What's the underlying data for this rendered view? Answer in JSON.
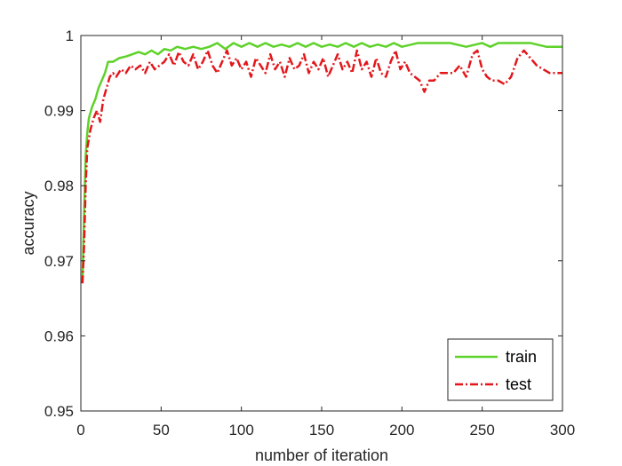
{
  "chart_data": {
    "type": "line",
    "xlabel": "number of iteration",
    "ylabel": "accuracy",
    "xlim": [
      0,
      300
    ],
    "ylim": [
      0.95,
      1.0
    ],
    "x_ticks": [
      0,
      50,
      100,
      150,
      200,
      250,
      300
    ],
    "x_tick_labels": [
      "0",
      "50",
      "100",
      "150",
      "200",
      "250",
      "300"
    ],
    "y_ticks": [
      0.95,
      0.96,
      0.97,
      0.98,
      0.99,
      1.0
    ],
    "y_tick_labels": [
      "0.95",
      "0.96",
      "0.97",
      "0.98",
      "0.99",
      "1"
    ],
    "grid": false,
    "legend_position": "bottom-right",
    "series": [
      {
        "name": "train",
        "color": "#5ed22a",
        "line_style": "solid",
        "points": [
          [
            1,
            0.967
          ],
          [
            2,
            0.976
          ],
          [
            3,
            0.984
          ],
          [
            4,
            0.987
          ],
          [
            5,
            0.989
          ],
          [
            7,
            0.9905
          ],
          [
            9,
            0.9915
          ],
          [
            11,
            0.993
          ],
          [
            13,
            0.994
          ],
          [
            15,
            0.995
          ],
          [
            17,
            0.9965
          ],
          [
            20,
            0.9965
          ],
          [
            24,
            0.997
          ],
          [
            28,
            0.9972
          ],
          [
            32,
            0.9975
          ],
          [
            36,
            0.9978
          ],
          [
            40,
            0.9975
          ],
          [
            44,
            0.998
          ],
          [
            48,
            0.9975
          ],
          [
            52,
            0.9982
          ],
          [
            56,
            0.998
          ],
          [
            60,
            0.9985
          ],
          [
            65,
            0.9982
          ],
          [
            70,
            0.9985
          ],
          [
            75,
            0.9982
          ],
          [
            80,
            0.9985
          ],
          [
            85,
            0.999
          ],
          [
            90,
            0.9982
          ],
          [
            95,
            0.999
          ],
          [
            100,
            0.9985
          ],
          [
            105,
            0.999
          ],
          [
            110,
            0.9985
          ],
          [
            115,
            0.999
          ],
          [
            120,
            0.9985
          ],
          [
            125,
            0.9988
          ],
          [
            130,
            0.9985
          ],
          [
            135,
            0.999
          ],
          [
            140,
            0.9985
          ],
          [
            145,
            0.999
          ],
          [
            150,
            0.9985
          ],
          [
            155,
            0.9988
          ],
          [
            160,
            0.9985
          ],
          [
            165,
            0.999
          ],
          [
            170,
            0.9985
          ],
          [
            175,
            0.999
          ],
          [
            180,
            0.9985
          ],
          [
            185,
            0.9988
          ],
          [
            190,
            0.9985
          ],
          [
            195,
            0.999
          ],
          [
            200,
            0.9985
          ],
          [
            210,
            0.999
          ],
          [
            220,
            0.999
          ],
          [
            230,
            0.999
          ],
          [
            240,
            0.9985
          ],
          [
            250,
            0.999
          ],
          [
            255,
            0.9985
          ],
          [
            260,
            0.999
          ],
          [
            270,
            0.999
          ],
          [
            280,
            0.999
          ],
          [
            290,
            0.9985
          ],
          [
            300,
            0.9985
          ]
        ]
      },
      {
        "name": "test",
        "color": "#e3171b",
        "line_style": "dashdot",
        "points": [
          [
            1,
            0.967
          ],
          [
            2,
            0.972
          ],
          [
            3,
            0.98
          ],
          [
            4,
            0.985
          ],
          [
            6,
            0.9875
          ],
          [
            8,
            0.989
          ],
          [
            10,
            0.99
          ],
          [
            12,
            0.9885
          ],
          [
            14,
            0.9915
          ],
          [
            16,
            0.993
          ],
          [
            18,
            0.9945
          ],
          [
            20,
            0.995
          ],
          [
            22,
            0.9945
          ],
          [
            25,
            0.9955
          ],
          [
            28,
            0.995
          ],
          [
            31,
            0.996
          ],
          [
            34,
            0.9955
          ],
          [
            37,
            0.996
          ],
          [
            40,
            0.995
          ],
          [
            43,
            0.9965
          ],
          [
            46,
            0.9955
          ],
          [
            49,
            0.996
          ],
          [
            52,
            0.9965
          ],
          [
            55,
            0.9975
          ],
          [
            58,
            0.996
          ],
          [
            61,
            0.9978
          ],
          [
            64,
            0.9965
          ],
          [
            67,
            0.996
          ],
          [
            70,
            0.9975
          ],
          [
            73,
            0.9955
          ],
          [
            76,
            0.9965
          ],
          [
            79,
            0.998
          ],
          [
            82,
            0.996
          ],
          [
            85,
            0.995
          ],
          [
            88,
            0.9965
          ],
          [
            91,
            0.998
          ],
          [
            94,
            0.996
          ],
          [
            97,
            0.997
          ],
          [
            100,
            0.9955
          ],
          [
            103,
            0.9965
          ],
          [
            106,
            0.9945
          ],
          [
            109,
            0.997
          ],
          [
            112,
            0.996
          ],
          [
            115,
            0.995
          ],
          [
            118,
            0.9975
          ],
          [
            121,
            0.9955
          ],
          [
            124,
            0.9965
          ],
          [
            127,
            0.9945
          ],
          [
            130,
            0.997
          ],
          [
            133,
            0.9955
          ],
          [
            136,
            0.996
          ],
          [
            139,
            0.9975
          ],
          [
            142,
            0.995
          ],
          [
            145,
            0.9965
          ],
          [
            148,
            0.9955
          ],
          [
            151,
            0.997
          ],
          [
            154,
            0.9945
          ],
          [
            157,
            0.996
          ],
          [
            160,
            0.9975
          ],
          [
            163,
            0.9955
          ],
          [
            166,
            0.9965
          ],
          [
            169,
            0.995
          ],
          [
            172,
            0.998
          ],
          [
            175,
            0.9955
          ],
          [
            178,
            0.9965
          ],
          [
            181,
            0.9945
          ],
          [
            184,
            0.997
          ],
          [
            187,
            0.995
          ],
          [
            190,
            0.9945
          ],
          [
            193,
            0.9965
          ],
          [
            196,
            0.998
          ],
          [
            199,
            0.9955
          ],
          [
            202,
            0.9965
          ],
          [
            205,
            0.995
          ],
          [
            208,
            0.9945
          ],
          [
            211,
            0.994
          ],
          [
            214,
            0.9925
          ],
          [
            217,
            0.994
          ],
          [
            220,
            0.994
          ],
          [
            224,
            0.995
          ],
          [
            228,
            0.995
          ],
          [
            232,
            0.995
          ],
          [
            236,
            0.996
          ],
          [
            240,
            0.9945
          ],
          [
            244,
            0.9975
          ],
          [
            247,
            0.998
          ],
          [
            250,
            0.9955
          ],
          [
            253,
            0.9945
          ],
          [
            256,
            0.994
          ],
          [
            260,
            0.994
          ],
          [
            264,
            0.9935
          ],
          [
            268,
            0.9945
          ],
          [
            272,
            0.997
          ],
          [
            276,
            0.998
          ],
          [
            280,
            0.997
          ],
          [
            284,
            0.996
          ],
          [
            288,
            0.9955
          ],
          [
            292,
            0.995
          ],
          [
            296,
            0.995
          ],
          [
            300,
            0.995
          ]
        ]
      }
    ]
  }
}
